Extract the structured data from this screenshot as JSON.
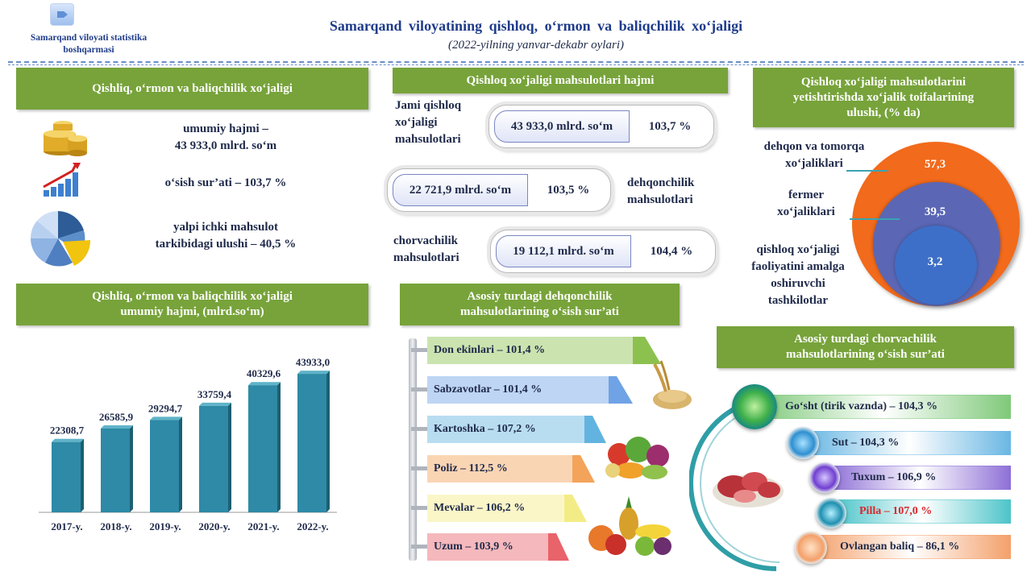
{
  "header": {
    "org_name": "Samarqand viloyati statistika boshqarmasi",
    "title": "Samarqand viloyatining qishloq, o‘rmon va baliqchilik xo‘jaligi",
    "subtitle": "(2022-yilning yanvar-dekabr oylari)"
  },
  "left_top": {
    "heading": "Qishliq, o‘rmon va baliqchilik xo‘jaligi",
    "stat1": "umumiy hajmi –\n43 933,0 mlrd. so‘m",
    "stat2": "o‘sish sur’ati – 103,7 %",
    "stat3": "yalpi ichki mahsulot\ntarkibidagi ulushi – 40,5 %"
  },
  "middle_top": {
    "heading": "Qishloq xo‘jaligi mahsulotlari hajmi",
    "rows": [
      {
        "label": "Jami qishloq\nxo‘jaligi\nmahsulotlari",
        "value": "43 933,0 mlrd. so‘m",
        "pct": "103,7 %"
      },
      {
        "label": "dehqonchilik\nmahsulotlari",
        "value": "22 721,9  mlrd. so‘m",
        "pct": "103,5 %"
      },
      {
        "label": "chorvachilik\nmahsulotlari",
        "value": "19 112,1 mlrd. so‘m",
        "pct": "104,4 %"
      }
    ]
  },
  "right_top": {
    "heading": "Qishloq xo‘jaligi mahsulotlarini\nyetishtirishda xo‘jalik toifalarining\nulushi, (% da)",
    "labels": [
      "dehqon va tomorqa\nxo‘jaliklari",
      "fermer\nxo‘jaliklari",
      "qishloq xo‘jaligi\nfaoliyatini amalga\noshiruvchi\ntashkilotlar"
    ],
    "values": [
      "57,3",
      "39,5",
      "3,2"
    ],
    "colors": [
      "#f26a1b",
      "#5b67b5",
      "#3d6fc8"
    ]
  },
  "chart_heading": "Qishliq, o‘rmon va baliqchilik xo‘jaligi\numumiy hajmi, (mlrd.so‘m)",
  "chart_data": {
    "type": "bar",
    "categories": [
      "2017-y.",
      "2018-y.",
      "2019-y.",
      "2020-y.",
      "2021-y.",
      "2022-y."
    ],
    "values": [
      22308.7,
      26585.9,
      29294.7,
      33759.4,
      40329.6,
      43933.0
    ],
    "value_labels": [
      "22308,7",
      "26585,9",
      "29294,7",
      "33759,4",
      "40329,6",
      "43933,0"
    ],
    "bar_color": "#2e8aa6"
  },
  "dehqon": {
    "heading": "Asosiy turdagi dehqonchilik\nmahsulotlarining o‘sish sur’ati",
    "items": [
      {
        "label": "Don ekinlari  – 101,4 %",
        "color": "#8cc14f"
      },
      {
        "label": "Sabzavotlar  – 101,4 %",
        "color": "#6fa3e6"
      },
      {
        "label": "Kartoshka  – 107,2 %",
        "color": "#63b3e0"
      },
      {
        "label": "Poliz  – 112,5 %",
        "color": "#f4a35a"
      },
      {
        "label": "Mevalar – 106,2 %",
        "color": "#f3ec86"
      },
      {
        "label": "Uzum  – 103,9 %",
        "color": "#e9636b"
      }
    ]
  },
  "chorva": {
    "heading": "Asosiy turdagi chorvachilik\nmahsulotlarining  o‘sish sur’ati",
    "items": [
      {
        "label": "Go‘sht (tirik vaznda)  – 104,3 %",
        "color": "#7fc97a",
        "text_color": "#1f2a4a"
      },
      {
        "label": "Sut  – 104,3 %",
        "color": "#6ab7e3",
        "text_color": "#1f2a4a"
      },
      {
        "label": "Tuxum  – 106,9 %",
        "color": "#8d6fd6",
        "text_color": "#1f2a4a"
      },
      {
        "label": "Pilla  – 107,0 %",
        "color": "#4cc4c9",
        "text_color": "#d9262b"
      },
      {
        "label": "Ovlangan baliq  – 86,1 %",
        "color": "#f3a06a",
        "text_color": "#1f2a4a"
      }
    ]
  },
  "icons": {
    "logo": "statistics-logo-icon",
    "coins": "coins-icon",
    "growth": "growth-chart-icon",
    "pie": "pie-chart-icon"
  }
}
